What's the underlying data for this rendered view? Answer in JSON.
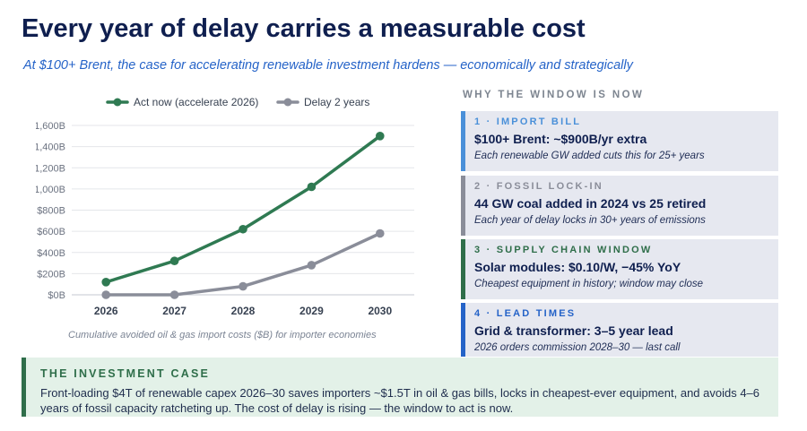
{
  "title": "Every year of delay carries a measurable cost",
  "subtitle": "At $100+ Brent, the case for accelerating renewable investment hardens — economically and strategically",
  "colors": {
    "title": "#0f1f4f",
    "subtitle": "#2563c8",
    "act_now": "#2f7a52",
    "delay": "#8a8d99",
    "card_bg": "#e6e8f0",
    "case_bg": "#e3f1e8"
  },
  "chart_data": {
    "type": "line",
    "x": [
      "2026",
      "2027",
      "2028",
      "2029",
      "2030"
    ],
    "series": [
      {
        "name": "Act now (accelerate 2026)",
        "values": [
          120,
          320,
          620,
          1020,
          1500
        ],
        "color": "#2f7a52"
      },
      {
        "name": "Delay 2 years",
        "values": [
          0,
          0,
          80,
          280,
          580
        ],
        "color": "#8a8d99"
      }
    ],
    "y_ticks": [
      "$0B",
      "$200B",
      "$400B",
      "$600B",
      "$800B",
      "$1,000B",
      "$1,200B",
      "$1,400B",
      "$1,600B"
    ],
    "ylim": [
      0,
      1600
    ],
    "grid": true,
    "legend_position": "top",
    "caption": "Cumulative avoided oil & gas import costs ($B) for importer economies"
  },
  "panel": {
    "heading": "WHY THE WINDOW IS NOW",
    "cards": [
      {
        "label": "1 · IMPORT BILL",
        "headline": "$100+ Brent: ~$900B/yr extra",
        "sub": "Each renewable GW added cuts this for 25+ years",
        "accent": "#4a90d9"
      },
      {
        "label": "2 · FOSSIL LOCK-IN",
        "headline": "44 GW coal added in 2024 vs 25 retired",
        "sub": "Each year of delay locks in 30+ years of emissions",
        "accent": "#8a8d99"
      },
      {
        "label": "3 · SUPPLY CHAIN WINDOW",
        "headline": "Solar modules: $0.10/W, −45% YoY",
        "sub": "Cheapest equipment in history; window may close",
        "accent": "#2f6e4a"
      },
      {
        "label": "4 · LEAD TIMES",
        "headline": "Grid & transformer: 3–5 year lead",
        "sub": "2026 orders commission 2028–30 — last call",
        "accent": "#2563c8"
      }
    ]
  },
  "investment_case": {
    "title": "THE INVESTMENT CASE",
    "body": "Front-loading $4T of renewable capex 2026–30 saves importers ~$1.5T in oil & gas bills, locks in cheapest-ever equipment, and avoids 4–6 years of fossil capacity ratcheting up. The cost of delay is rising — the window to act is now."
  }
}
